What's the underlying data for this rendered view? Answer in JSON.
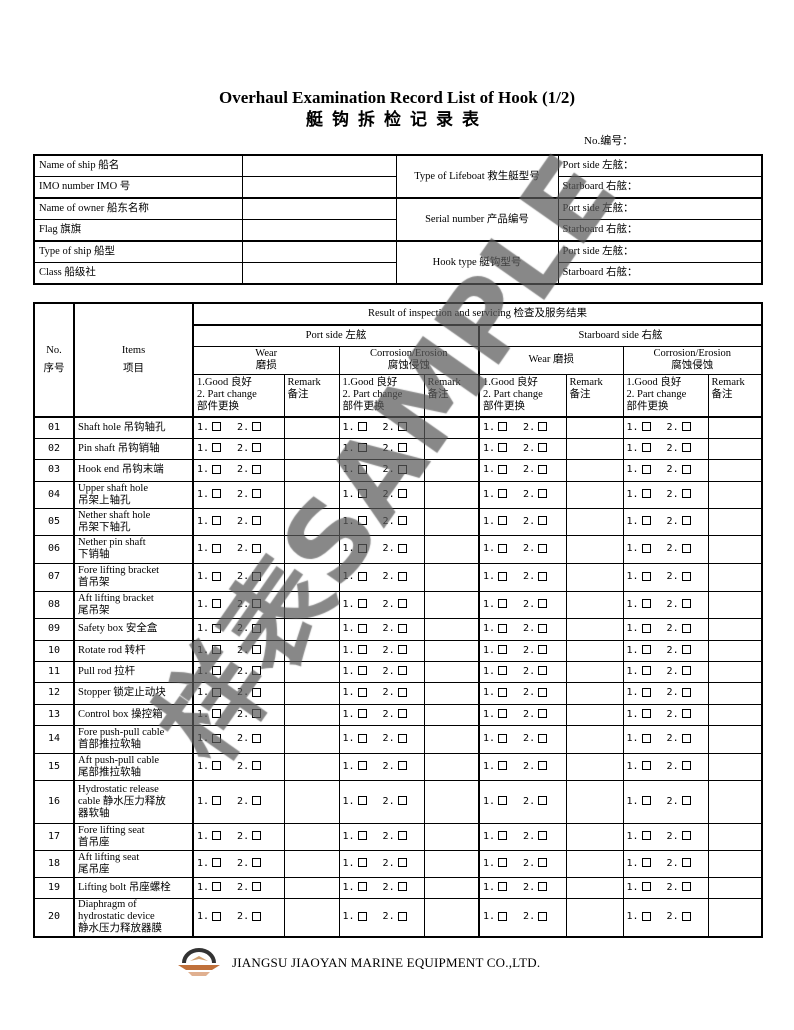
{
  "header": {
    "title_en": "Overhaul Examination Record List of Hook (1/2)",
    "title_cn": "艇钩拆检记录表",
    "doc_no_label": "No.编号："
  },
  "info_table": {
    "left_labels": [
      "Name of ship 船名",
      "IMO number IMO 号",
      "Name of owner 船东名称",
      "Flag 旗旗",
      "Type of ship 船型",
      "Class 船级社"
    ],
    "right_groups": [
      {
        "label": "Type of Lifeboat 救生艇型号",
        "port": "Port side 左舷：",
        "starboard": "Starboard 右舷："
      },
      {
        "label": "Serial number 产品编号",
        "port": "Port side 左舷：",
        "starboard": "Starboard 右舷："
      },
      {
        "label": "Hook type 艇钩型号",
        "port": "Port side 左舷：",
        "starboard": "Starboard 右舷："
      }
    ]
  },
  "main_table": {
    "no_header": [
      "No.",
      "序号"
    ],
    "items_header": [
      "Items",
      "项目"
    ],
    "result_header": "Result of inspection and servicing 检查及服务结果",
    "port_side": "Port side 左舷",
    "starboard_side": "Starboard side 右舷",
    "wear": [
      "Wear",
      "磨损"
    ],
    "wear_starboard": "Wear 磨损",
    "corrosion": [
      "Corrosion/Erosion",
      "腐蚀侵蚀"
    ],
    "option_lines": [
      "1.Good 良好",
      "2. Part change",
      "部件更换"
    ],
    "remark": [
      "Remark",
      "备注"
    ],
    "option_1": "1.",
    "option_2": "2.",
    "rows": [
      {
        "no": "01",
        "item": [
          "Shaft hole 吊钩轴孔"
        ]
      },
      {
        "no": "02",
        "item": [
          "Pin shaft 吊钩销轴"
        ]
      },
      {
        "no": "03",
        "item": [
          "Hook end 吊钩末端"
        ]
      },
      {
        "no": "04",
        "item": [
          "Upper shaft hole",
          "吊架上轴孔"
        ]
      },
      {
        "no": "05",
        "item": [
          "Nether shaft hole",
          "吊架下轴孔"
        ]
      },
      {
        "no": "06",
        "item": [
          "Nether pin shaft",
          "下销轴"
        ]
      },
      {
        "no": "07",
        "item": [
          "Fore lifting bracket",
          "首吊架"
        ]
      },
      {
        "no": "08",
        "item": [
          "Aft lifting bracket",
          "尾吊架"
        ]
      },
      {
        "no": "09",
        "item": [
          "Safety box 安全盒"
        ]
      },
      {
        "no": "10",
        "item": [
          "Rotate rod 转杆"
        ]
      },
      {
        "no": "11",
        "item": [
          "Pull rod 拉杆"
        ]
      },
      {
        "no": "12",
        "item": [
          "Stopper 锁定止动块"
        ]
      },
      {
        "no": "13",
        "item": [
          "Control box 操控箱"
        ]
      },
      {
        "no": "14",
        "item": [
          "Fore push-pull cable",
          "首部推拉软轴"
        ]
      },
      {
        "no": "15",
        "item": [
          "Aft push-pull cable",
          "尾部推拉软轴"
        ]
      },
      {
        "no": "16",
        "item": [
          "Hydrostatic release",
          "cable 静水压力释放",
          "器软轴"
        ]
      },
      {
        "no": "17",
        "item": [
          "Fore lifting seat",
          "首吊座"
        ]
      },
      {
        "no": "18",
        "item": [
          "Aft lifting seat",
          "尾吊座"
        ]
      },
      {
        "no": "19",
        "item": [
          "Lifting bolt 吊座螺栓"
        ]
      },
      {
        "no": "20",
        "item": [
          "Diaphragm of",
          "hydrostatic device",
          "静水压力释放器膜"
        ]
      }
    ]
  },
  "watermark": "样表SAMPLE",
  "footer": {
    "company": "JIANGSU JIAOYAN MARINE EQUIPMENT CO.,LTD."
  }
}
